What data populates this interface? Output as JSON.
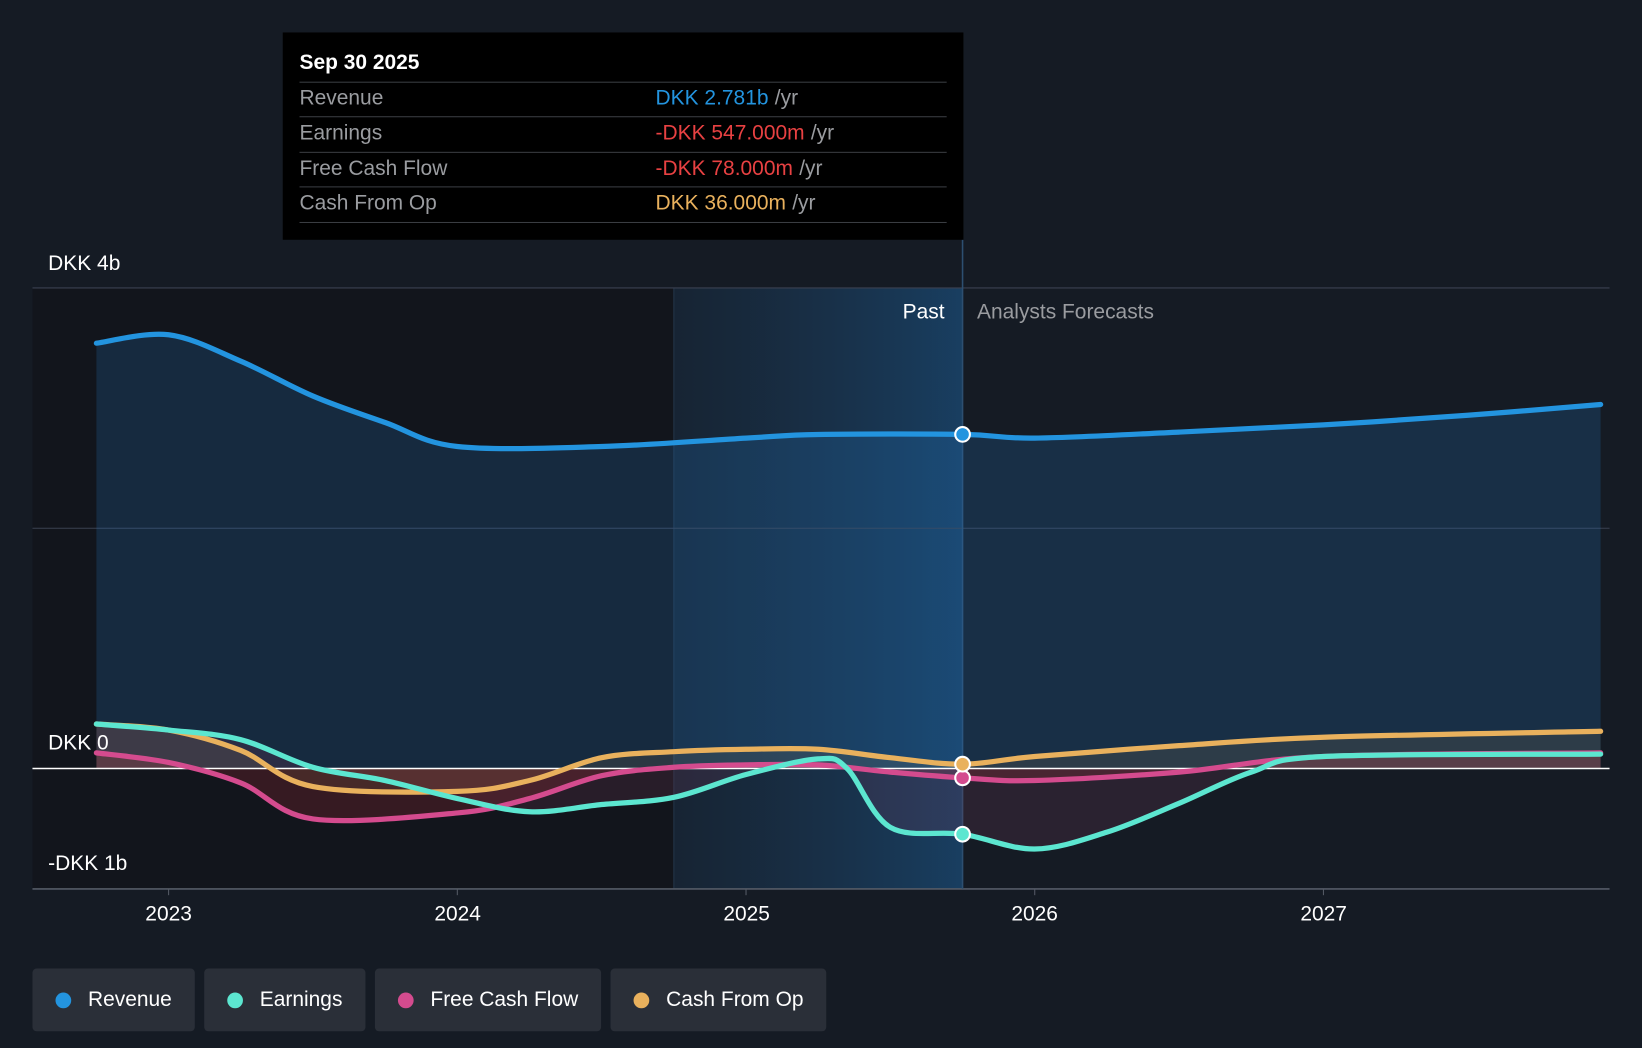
{
  "tooltip": {
    "date": "Sep 30 2025",
    "rows": [
      {
        "label": "Revenue",
        "value": "DKK 2.781b",
        "unit": "/yr",
        "color": "#2394df"
      },
      {
        "label": "Earnings",
        "value": "-DKK 547.000m",
        "unit": "/yr",
        "color": "#e84142"
      },
      {
        "label": "Free Cash Flow",
        "value": "-DKK 78.000m",
        "unit": "/yr",
        "color": "#e84142"
      },
      {
        "label": "Cash From Op",
        "value": "DKK 36.000m",
        "unit": "/yr",
        "color": "#e9b15d"
      }
    ]
  },
  "chart_data": {
    "type": "line",
    "title": "",
    "xlabel": "",
    "ylabel": "",
    "y_unit": "DKK billions",
    "ylim": [
      -1,
      4
    ],
    "xlim": [
      2022.75,
      2027.96
    ],
    "y_tick_labels": [
      {
        "value": 4,
        "label": "DKK 4b"
      },
      {
        "value": 0,
        "label": "DKK 0"
      },
      {
        "value": -1,
        "label": "-DKK 1b"
      }
    ],
    "x_ticks": [
      2023,
      2024,
      2025,
      2026,
      2027
    ],
    "x_tick_labels": [
      "2023",
      "2024",
      "2025",
      "2026",
      "2027"
    ],
    "past_label": "Past",
    "forecast_label": "Analysts Forecasts",
    "past_end": 2025.75,
    "highlight_start": 2024.75,
    "series": [
      {
        "name": "Revenue",
        "color": "#2394df",
        "points": [
          [
            2022.75,
            3.54
          ],
          [
            2023.0,
            3.61
          ],
          [
            2023.25,
            3.39
          ],
          [
            2023.5,
            3.1
          ],
          [
            2023.75,
            2.88
          ],
          [
            2024.0,
            2.68
          ],
          [
            2024.5,
            2.68
          ],
          [
            2025.0,
            2.75
          ],
          [
            2025.25,
            2.78
          ],
          [
            2025.75,
            2.781
          ],
          [
            2026.0,
            2.75
          ],
          [
            2026.5,
            2.8
          ],
          [
            2027.0,
            2.86
          ],
          [
            2027.5,
            2.94
          ],
          [
            2027.96,
            3.03
          ]
        ]
      },
      {
        "name": "Earnings",
        "color": "#5ce6d0",
        "points": [
          [
            2022.75,
            0.37
          ],
          [
            2023.0,
            0.32
          ],
          [
            2023.25,
            0.24
          ],
          [
            2023.5,
            0.01
          ],
          [
            2023.75,
            -0.1
          ],
          [
            2024.0,
            -0.25
          ],
          [
            2024.25,
            -0.36
          ],
          [
            2024.5,
            -0.3
          ],
          [
            2024.75,
            -0.24
          ],
          [
            2025.0,
            -0.05
          ],
          [
            2025.25,
            0.08
          ],
          [
            2025.35,
            0.0
          ],
          [
            2025.5,
            -0.49
          ],
          [
            2025.75,
            -0.547
          ],
          [
            2026.0,
            -0.67
          ],
          [
            2026.25,
            -0.53
          ],
          [
            2026.5,
            -0.29
          ],
          [
            2026.75,
            -0.03
          ],
          [
            2027.0,
            0.1
          ],
          [
            2027.96,
            0.12
          ]
        ]
      },
      {
        "name": "Free Cash Flow",
        "color": "#d44b8e",
        "points": [
          [
            2022.75,
            0.13
          ],
          [
            2023.0,
            0.05
          ],
          [
            2023.25,
            -0.12
          ],
          [
            2023.5,
            -0.42
          ],
          [
            2024.0,
            -0.37
          ],
          [
            2024.25,
            -0.25
          ],
          [
            2024.5,
            -0.06
          ],
          [
            2024.75,
            0.01
          ],
          [
            2025.0,
            0.03
          ],
          [
            2025.25,
            0.03
          ],
          [
            2025.5,
            -0.03
          ],
          [
            2025.75,
            -0.078
          ],
          [
            2026.0,
            -0.1
          ],
          [
            2026.5,
            -0.03
          ],
          [
            2027.0,
            0.1
          ],
          [
            2027.96,
            0.13
          ]
        ]
      },
      {
        "name": "Cash From Op",
        "color": "#e9b15d",
        "points": [
          [
            2022.75,
            0.37
          ],
          [
            2023.0,
            0.32
          ],
          [
            2023.25,
            0.15
          ],
          [
            2023.5,
            -0.15
          ],
          [
            2024.0,
            -0.19
          ],
          [
            2024.25,
            -0.1
          ],
          [
            2024.5,
            0.09
          ],
          [
            2024.75,
            0.14
          ],
          [
            2025.0,
            0.16
          ],
          [
            2025.25,
            0.16
          ],
          [
            2025.5,
            0.09
          ],
          [
            2025.75,
            0.036
          ],
          [
            2026.0,
            0.1
          ],
          [
            2026.5,
            0.19
          ],
          [
            2027.0,
            0.26
          ],
          [
            2027.96,
            0.31
          ]
        ]
      }
    ]
  },
  "legend": [
    {
      "label": "Revenue",
      "color": "#2394df"
    },
    {
      "label": "Earnings",
      "color": "#5ce6d0"
    },
    {
      "label": "Free Cash Flow",
      "color": "#d44b8e"
    },
    {
      "label": "Cash From Op",
      "color": "#e9b15d"
    }
  ]
}
